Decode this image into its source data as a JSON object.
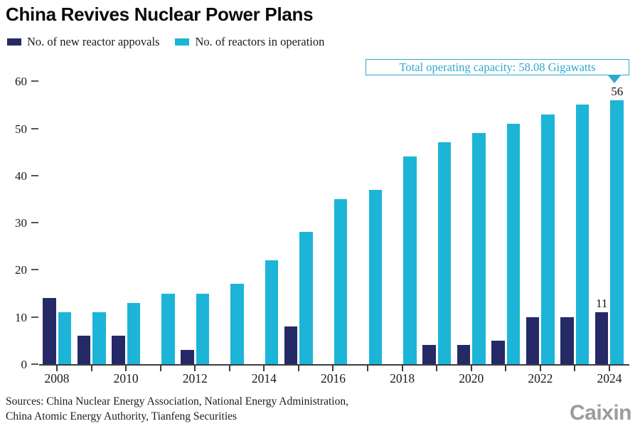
{
  "title": {
    "text": "China Revives Nuclear Power Plans"
  },
  "legend": {
    "items": [
      {
        "label": "No. of new reactor appovals",
        "color": "#252a66"
      },
      {
        "label": "No. of reactors in operation",
        "color": "#1cb5d8"
      }
    ]
  },
  "annotation": {
    "text": "Total operating capacity: 58.08 Gigawatts",
    "color": "#2fa9cb"
  },
  "chart_data": {
    "type": "bar",
    "categories": [
      "2008",
      "2009",
      "2010",
      "2011",
      "2012",
      "2013",
      "2014",
      "2015",
      "2016",
      "2017",
      "2018",
      "2019",
      "2020",
      "2021",
      "2022",
      "2023",
      "2024"
    ],
    "series": [
      {
        "name": "No. of new reactor appovals",
        "color": "#252a66",
        "values": [
          14,
          6,
          6,
          0,
          3,
          0,
          0,
          8,
          0,
          0,
          0,
          4,
          4,
          5,
          10,
          10,
          11
        ]
      },
      {
        "name": "No. of reactors in operation",
        "color": "#1cb5d8",
        "values": [
          11,
          11,
          13,
          15,
          15,
          17,
          22,
          28,
          35,
          37,
          44,
          47,
          49,
          51,
          53,
          55,
          56
        ]
      }
    ],
    "title": "China Revives Nuclear Power Plans",
    "xlabel": "",
    "ylabel": "",
    "ylim": [
      0,
      60
    ],
    "y_ticks": [
      0,
      10,
      20,
      30,
      40,
      50,
      60
    ],
    "x_tick_labels": [
      "2008",
      "2010",
      "2012",
      "2014",
      "2016",
      "2018",
      "2020",
      "2022",
      "2024"
    ],
    "bar_labels": [
      {
        "series_index": 0,
        "category": "2024",
        "text": "11"
      },
      {
        "series_index": 1,
        "category": "2024",
        "text": "56"
      }
    ],
    "grid": false,
    "legend_position": "top-left"
  },
  "source": {
    "line1": "Sources: China Nuclear Energy Association, National Energy Administration,",
    "line2": "China Atomic Energy Authority, Tianfeng Securities"
  },
  "logo": {
    "text": "Caixin",
    "color": "#9c9c9c"
  }
}
